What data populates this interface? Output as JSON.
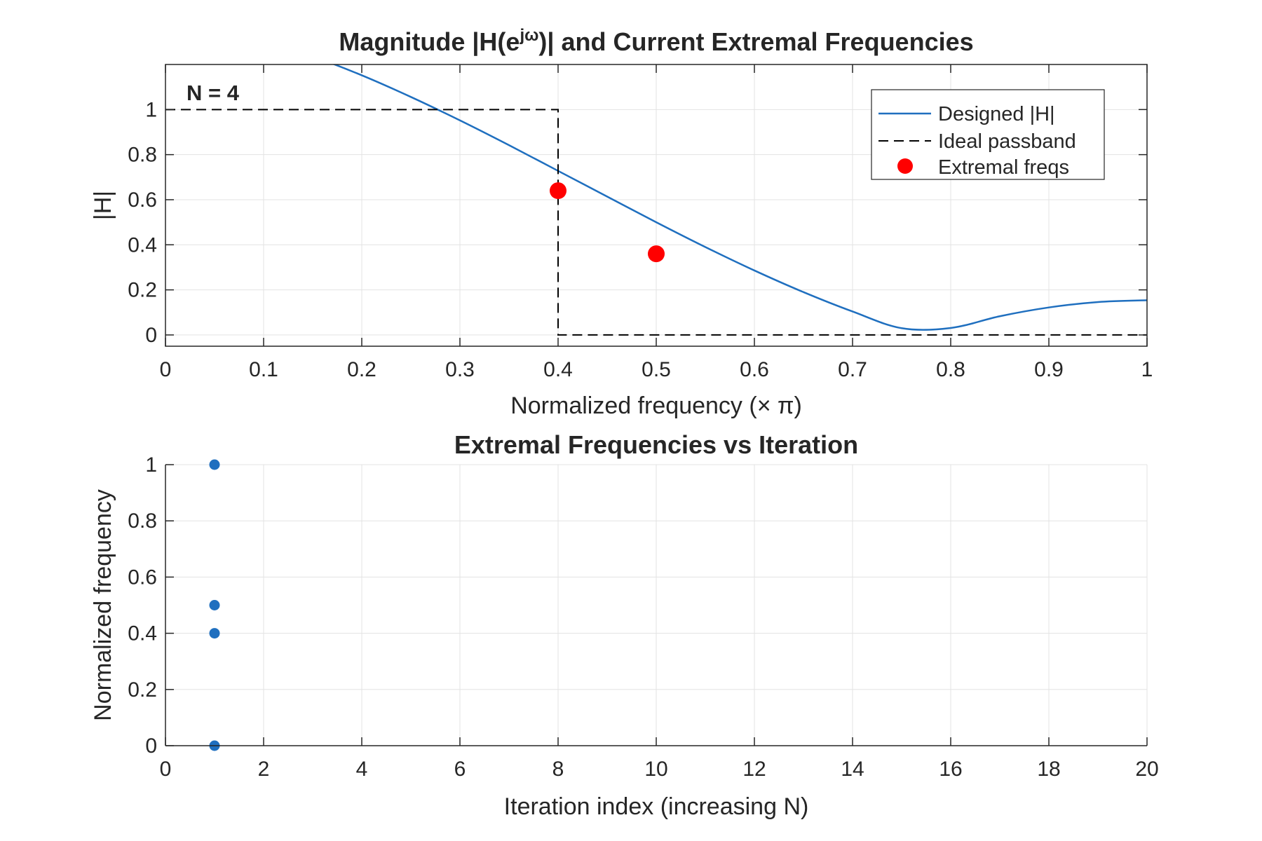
{
  "chart_data": [
    {
      "type": "line",
      "title": {
        "pre": "Magnitude |H(e",
        "sup": "jω",
        "post": ")| and Current Extremal Frequencies"
      },
      "xlabel": "Normalized frequency (× π)",
      "ylabel": "|H|",
      "xlim": [
        0,
        1
      ],
      "ylim": [
        -0.05,
        1.2
      ],
      "xticks": [
        0,
        0.1,
        0.2,
        0.3,
        0.4,
        0.5,
        0.6,
        0.7,
        0.8,
        0.9,
        1
      ],
      "xtick_labels": [
        "0",
        "0.1",
        "0.2",
        "0.3",
        "0.4",
        "0.5",
        "0.6",
        "0.7",
        "0.8",
        "0.9",
        "1"
      ],
      "yticks": [
        0,
        0.2,
        0.4,
        0.6,
        0.8,
        1
      ],
      "ytick_labels": [
        "0",
        "0.2",
        "0.4",
        "0.6",
        "0.8",
        "1"
      ],
      "grid": true,
      "annotation": "N = 4",
      "legend": {
        "placement": "top-right",
        "entries": [
          "Designed |H|",
          "Ideal passband",
          "Extremal freqs"
        ]
      },
      "series": [
        {
          "name": "Designed |H|",
          "style": "line",
          "color": "#1f6fbf",
          "x": [
            0.1,
            0.15,
            0.2,
            0.25,
            0.3,
            0.35,
            0.4,
            0.45,
            0.5,
            0.55,
            0.6,
            0.65,
            0.7,
            0.75,
            0.8,
            0.85,
            0.9,
            0.95,
            1.0
          ],
          "y": [
            1.306,
            1.236,
            1.152,
            1.056,
            0.952,
            0.842,
            0.728,
            0.614,
            0.5,
            0.39,
            0.286,
            0.19,
            0.104,
            0.03,
            0.031,
            0.083,
            0.122,
            0.146,
            0.154
          ]
        },
        {
          "name": "Ideal passband",
          "style": "dashed",
          "color": "#000000",
          "x": [
            0,
            0.4,
            0.4,
            1
          ],
          "y": [
            1,
            1,
            0,
            0
          ]
        },
        {
          "name": "Extremal freqs",
          "style": "markers",
          "color": "#ff0000",
          "x": [
            0.4,
            0.5
          ],
          "y": [
            0.64,
            0.36
          ]
        }
      ]
    },
    {
      "type": "scatter",
      "title": "Extremal Frequencies vs Iteration",
      "xlabel": "Iteration index (increasing N)",
      "ylabel": "Normalized frequency",
      "xlim": [
        0,
        20
      ],
      "ylim": [
        0,
        1
      ],
      "xticks": [
        0,
        2,
        4,
        6,
        8,
        10,
        12,
        14,
        16,
        18,
        20
      ],
      "xtick_labels": [
        "0",
        "2",
        "4",
        "6",
        "8",
        "10",
        "12",
        "14",
        "16",
        "18",
        "20"
      ],
      "yticks": [
        0,
        0.2,
        0.4,
        0.6,
        0.8,
        1
      ],
      "ytick_labels": [
        "0",
        "0.2",
        "0.4",
        "0.6",
        "0.8",
        "1"
      ],
      "grid": true,
      "series": [
        {
          "color": "#1f6fbf",
          "x": [
            1,
            1,
            1,
            1
          ],
          "y": [
            0,
            0.4,
            0.5,
            1
          ]
        }
      ]
    }
  ]
}
